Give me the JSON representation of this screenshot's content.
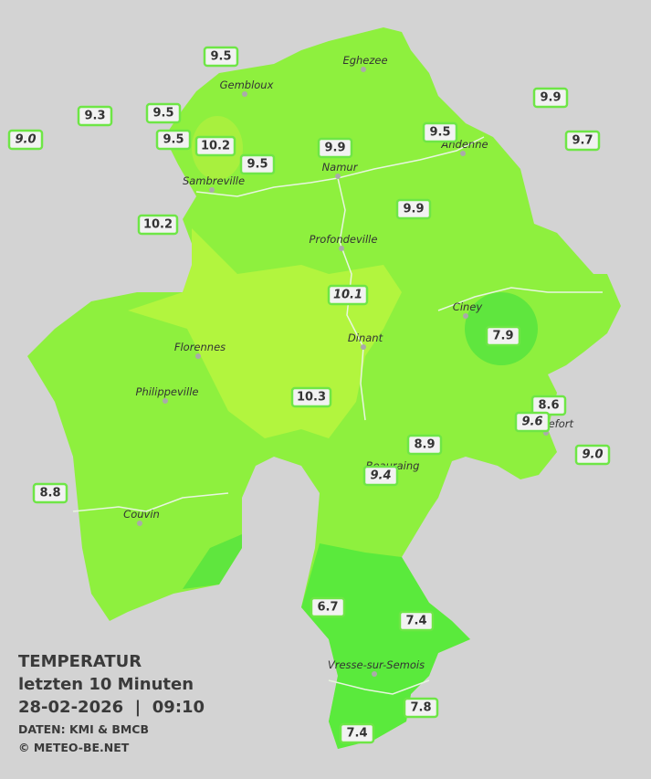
{
  "legend": {
    "title": "TEMPERATUR",
    "subtitle": "letzten 10 Minuten",
    "datetime": "28-02-2026  |  09:10",
    "source": "DATEN: KMI & BMCB",
    "copyright": "© METEO-BE.NET"
  },
  "cities": [
    "Eghezee",
    "Gembloux",
    "Andenne",
    "Namur",
    "Sambreville",
    "Profondeville",
    "Ciney",
    "Florennes",
    "Dinant",
    "Philippeville",
    "Rochefort",
    "Beauraing",
    "Couvin",
    "Vresse-sur-Semois"
  ],
  "readings": [
    {
      "value": "9.5",
      "italic": false
    },
    {
      "value": "9.3",
      "italic": false
    },
    {
      "value": "9.5",
      "italic": false
    },
    {
      "value": "9.0",
      "italic": true
    },
    {
      "value": "9.5",
      "italic": false
    },
    {
      "value": "10.2",
      "italic": false
    },
    {
      "value": "9.5",
      "italic": false
    },
    {
      "value": "9.9",
      "italic": false
    },
    {
      "value": "9.5",
      "italic": false
    },
    {
      "value": "9.9",
      "italic": false
    },
    {
      "value": "9.7",
      "italic": false
    },
    {
      "value": "9.9",
      "italic": false
    },
    {
      "value": "10.2",
      "italic": false
    },
    {
      "value": "10.1",
      "italic": true
    },
    {
      "value": "7.9",
      "italic": false
    },
    {
      "value": "10.3",
      "italic": false
    },
    {
      "value": "8.6",
      "italic": false
    },
    {
      "value": "9.6",
      "italic": true
    },
    {
      "value": "9.0",
      "italic": true
    },
    {
      "value": "8.9",
      "italic": false
    },
    {
      "value": "9.4",
      "italic": true
    },
    {
      "value": "8.8",
      "italic": false
    },
    {
      "value": "6.7",
      "italic": false
    },
    {
      "value": "7.4",
      "italic": false
    },
    {
      "value": "7.8",
      "italic": false
    },
    {
      "value": "7.4",
      "italic": false
    }
  ]
}
